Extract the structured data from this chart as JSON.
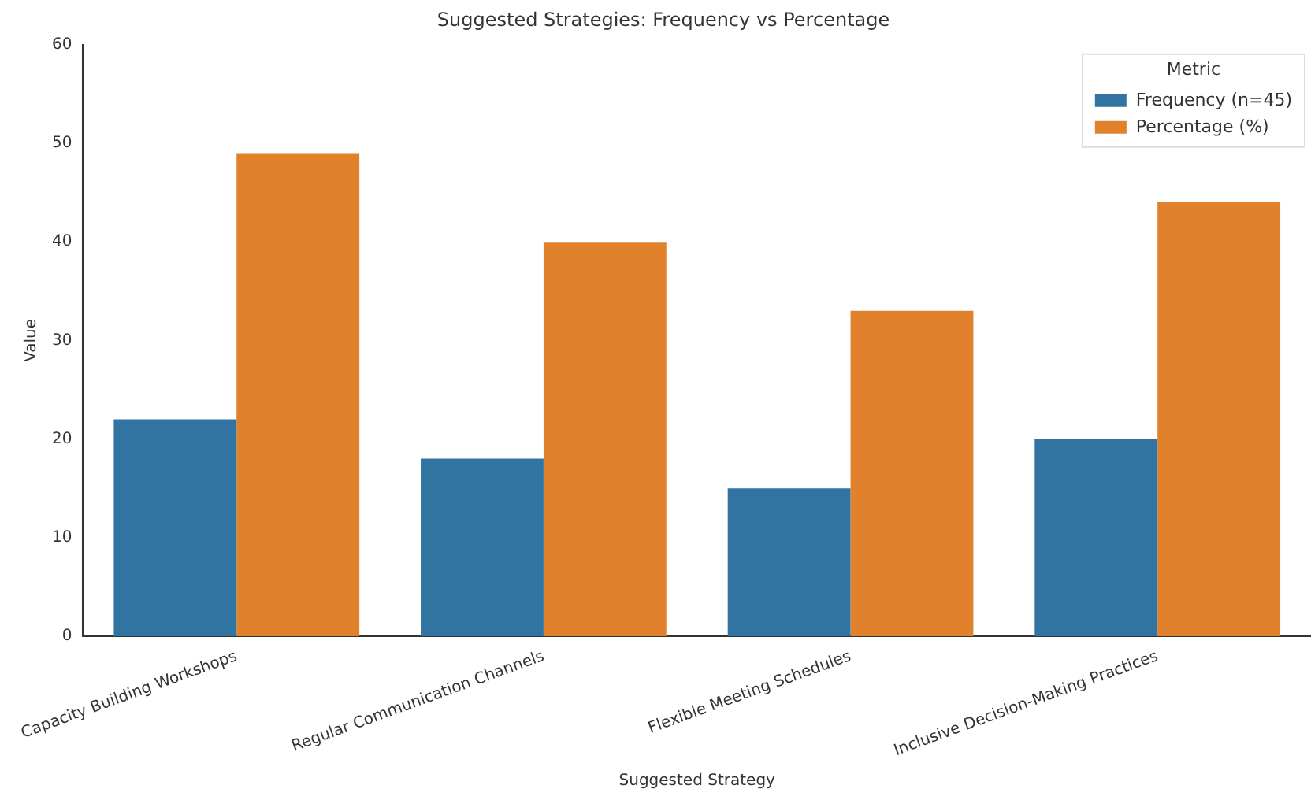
{
  "chart_data": {
    "type": "bar",
    "title": "Suggested Strategies: Frequency vs Percentage",
    "xlabel": "Suggested Strategy",
    "ylabel": "Value",
    "legend_title": "Metric",
    "categories": [
      "Capacity Building Workshops",
      "Regular Communication Channels",
      "Flexible Meeting Schedules",
      "Inclusive Decision-Making Practices"
    ],
    "series": [
      {
        "name": "Frequency (n=45)",
        "color": "#3274a1",
        "values": [
          22,
          18,
          15,
          20
        ]
      },
      {
        "name": "Percentage (%)",
        "color": "#e1812c",
        "values": [
          49,
          40,
          33,
          44
        ]
      }
    ],
    "ylim": [
      0,
      60
    ],
    "yticks": [
      0,
      10,
      20,
      30,
      40,
      50,
      60
    ],
    "grid": false,
    "legend": "top right"
  }
}
